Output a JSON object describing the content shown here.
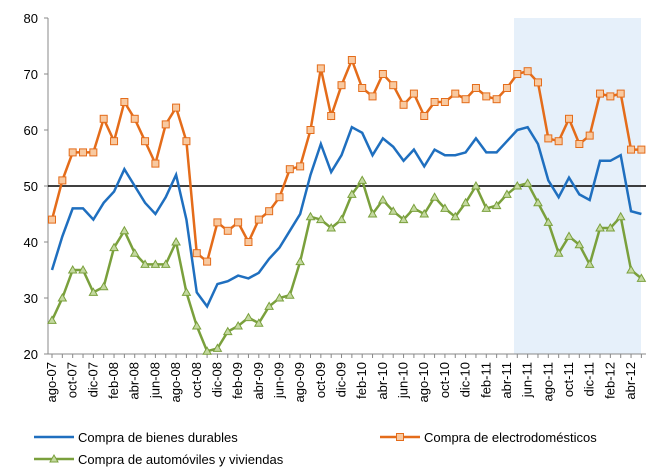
{
  "chart_data": {
    "type": "line",
    "categories": [
      "ago-07",
      null,
      "oct-07",
      null,
      "dic-07",
      null,
      "feb-08",
      null,
      "abr-08",
      null,
      "jun-08",
      null,
      "ago-08",
      null,
      "oct-08",
      null,
      "dic-08",
      null,
      "feb-09",
      null,
      "abr-09",
      null,
      "jun-09",
      null,
      "ago-09",
      null,
      "oct-09",
      null,
      "dic-09",
      null,
      "feb-10",
      null,
      "abr-10",
      null,
      "jun-10",
      null,
      "ago-10",
      null,
      "oct-10",
      null,
      "dic-10",
      null,
      "feb-11",
      null,
      "abr-11",
      null,
      "jun-11",
      null,
      "ago-11",
      null,
      "oct-11",
      null,
      "dic-11",
      null,
      "feb-12",
      null,
      "abr-12",
      null
    ],
    "series": [
      {
        "name": "Compra de bienes durables",
        "color": "#1f6fbf",
        "marker": "none",
        "values": [
          35,
          41,
          46,
          46,
          44,
          47,
          49,
          53,
          50,
          47,
          45,
          48,
          52,
          44,
          31,
          28.5,
          32.5,
          33,
          34,
          33.5,
          34.5,
          37,
          39,
          42,
          45,
          52,
          57.5,
          52.5,
          55.5,
          60.5,
          59.5,
          55.5,
          58.5,
          57,
          54.5,
          56.5,
          53.5,
          56.5,
          55.5,
          55.5,
          56,
          58.5,
          56,
          56,
          58,
          60,
          60.5,
          57.5,
          51,
          48,
          51.5,
          48.5,
          47.5,
          54.5,
          54.5,
          55.5,
          45.5,
          45
        ]
      },
      {
        "name": "Compra de electrodomésticos",
        "color": "#e46c1a",
        "marker": "square",
        "values": [
          44,
          51,
          56,
          56,
          56,
          62,
          58,
          65,
          62,
          58,
          54,
          61,
          64,
          58,
          38,
          36.5,
          43.5,
          42,
          43.5,
          40,
          44,
          45.5,
          48,
          53,
          53.5,
          60,
          71,
          62.5,
          68,
          72.5,
          67.5,
          66,
          70,
          68,
          64.5,
          66.5,
          62.5,
          65,
          65,
          66.5,
          65.5,
          67.5,
          66,
          65.5,
          67.5,
          70,
          70.5,
          68.5,
          58.5,
          58,
          62,
          57.5,
          59,
          66.5,
          66,
          66.5,
          56.5,
          56.5
        ]
      },
      {
        "name": "Compra de automóviles y viviendas",
        "color": "#7aa03c",
        "marker": "triangle",
        "values": [
          26,
          30,
          35,
          35,
          31,
          32,
          39,
          42,
          38,
          36,
          36,
          36,
          40,
          31,
          25,
          20.5,
          21,
          24,
          25,
          26.5,
          25.5,
          28.5,
          30,
          30.5,
          36.5,
          44.5,
          44,
          42.5,
          44,
          48.5,
          51,
          45,
          47.5,
          45.5,
          44,
          46,
          45,
          48,
          46,
          44.5,
          47,
          50,
          46,
          46.5,
          48.5,
          50,
          50.5,
          47,
          43.5,
          38,
          41,
          39.5,
          36,
          42.5,
          42.5,
          44.5,
          35,
          33.5
        ]
      }
    ],
    "ylim": [
      20,
      80
    ],
    "yticks": [
      20,
      30,
      40,
      50,
      60,
      70,
      80
    ],
    "reference_line": 50,
    "grid": false
  }
}
